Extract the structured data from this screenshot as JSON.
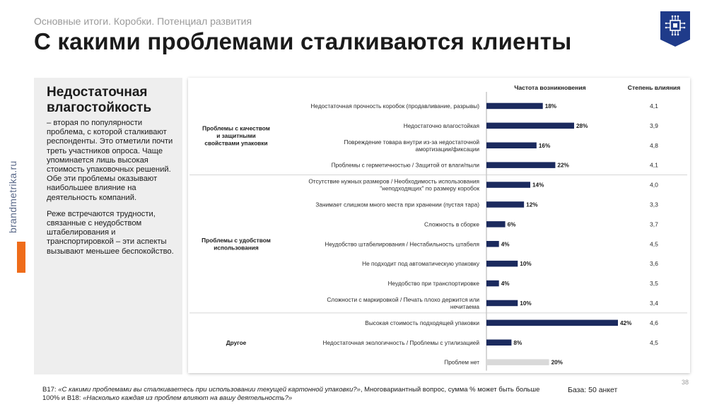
{
  "header": {
    "breadcrumb": "Основные итоги. Коробки. Потенциал развития",
    "title": "С какими проблемами сталкиваются клиенты"
  },
  "side": {
    "brand": "brandmetrika.ru"
  },
  "left_panel": {
    "heading": "Недостаточная влагостойкость",
    "paragraph1": "– вторая по популярности проблема, с которой сталкивают респонденты. Это отметили почти треть участников опроса. Чаще упоминается лишь высокая стоимость упаковочных решений. Обе эти проблемы оказывают наибольшее влияние на деятельность компаний.",
    "paragraph2": "Реже встречаются трудности, связанные с неудобством штабелирования и транспортировкой – эти аспекты вызывают меньшее беспокойство."
  },
  "footer": {
    "q_prefix": "B17: ",
    "q1": "«С какими проблемами вы сталкиваетесь при использовании текущей картонной упаковки?»",
    "mid": ", Многовариантный вопрос, сумма % может быть больше 100% и B18: ",
    "q2": "«Насколько каждая из проблем влияют на вашу деятельность?»",
    "base": "База: 50 анкет",
    "page": "38"
  },
  "colors": {
    "bar": "#1b2a5e",
    "bar_none": "#d9d9d9",
    "accent": "#ef6c1a",
    "logo": "#1f3b8a"
  },
  "chart_data": {
    "type": "bar",
    "orientation": "horizontal",
    "col_freq_label": "Частота возникновения",
    "col_impact_label": "Степень влияния",
    "xlim": [
      0,
      42
    ],
    "groups": [
      {
        "name": "Проблемы с качеством и защитными свойствами упаковки",
        "start": 0,
        "count": 4
      },
      {
        "name": "Проблемы с удобством использования",
        "start": 4,
        "count": 7
      },
      {
        "name": "Другое",
        "start": 11,
        "count": 3
      }
    ],
    "items": [
      {
        "label": "Недостаточная прочность коробок (продавливание, разрывы)",
        "value": 18,
        "value_label": "18%",
        "impact": "4,1"
      },
      {
        "label": "Недостаточно влагостойкая",
        "value": 28,
        "value_label": "28%",
        "impact": "3,9"
      },
      {
        "label": "Повреждение товара внутри из-за недостаточной амортизации/фиксации",
        "value": 16,
        "value_label": "16%",
        "impact": "4,8"
      },
      {
        "label": "Проблемы с герметичностью / Защитой от влаги/пыли",
        "value": 22,
        "value_label": "22%",
        "impact": "4,1"
      },
      {
        "label": "Отсутствие нужных размеров / Необходимость использования \"неподходящих\" по размеру коробок",
        "value": 14,
        "value_label": "14%",
        "impact": "4,0"
      },
      {
        "label": "Занимает слишком много места при хранении (пустая тара)",
        "value": 12,
        "value_label": "12%",
        "impact": "3,3"
      },
      {
        "label": "Сложность в сборке",
        "value": 6,
        "value_label": "6%",
        "impact": "3,7"
      },
      {
        "label": "Неудобство штабелирования / Нестабильность штабеля",
        "value": 4,
        "value_label": "4%",
        "impact": "4,5"
      },
      {
        "label": "Не подходит под автоматическую упаковку",
        "value": 10,
        "value_label": "10%",
        "impact": "3,6"
      },
      {
        "label": "Неудобство при транспортировке",
        "value": 4,
        "value_label": "4%",
        "impact": "3,5"
      },
      {
        "label": "Сложности с маркировкой / Печать плохо держится или нечитаема",
        "value": 10,
        "value_label": "10%",
        "impact": "3,4"
      },
      {
        "label": "Высокая стоимость подходящей упаковки",
        "value": 42,
        "value_label": "42%",
        "impact": "4,6"
      },
      {
        "label": "Недостаточная экологичность / Проблемы с утилизацией",
        "value": 8,
        "value_label": "8%",
        "impact": "4,5"
      },
      {
        "label": "Проблем нет",
        "value": 20,
        "value_label": "20%",
        "impact": ""
      }
    ]
  }
}
